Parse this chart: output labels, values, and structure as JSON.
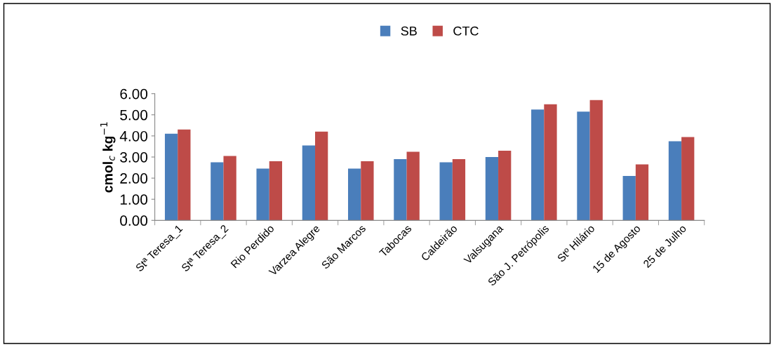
{
  "chart_data": {
    "type": "bar",
    "ylabel": "cmol$_{c}$ kg$^{−1}$",
    "categories": [
      "Stª Teresa_1",
      "Stª Teresa_2",
      "Rio Perdido",
      "Varzea Alegre",
      "São Marcos",
      "Tabocas",
      "Caldeirão",
      "Valsugana",
      "São J. Petrópolis",
      "Stº Hilário",
      "15 de Agosto",
      "25 de Julho"
    ],
    "series": [
      {
        "name": "SB",
        "color": "#4a7ebb",
        "values": [
          4.1,
          2.75,
          2.45,
          3.55,
          2.45,
          2.9,
          2.75,
          3.0,
          5.25,
          5.15,
          2.1,
          3.75
        ]
      },
      {
        "name": "CTC",
        "color": "#be4b48",
        "values": [
          4.3,
          3.05,
          2.8,
          4.2,
          2.8,
          3.25,
          2.9,
          3.3,
          5.5,
          5.7,
          2.65,
          3.95
        ]
      }
    ],
    "ylim": [
      0,
      6
    ],
    "yticks": [
      {
        "value": 0,
        "label": "0.00"
      },
      {
        "value": 1,
        "label": "1.00"
      },
      {
        "value": 2,
        "label": "2.00"
      },
      {
        "value": 3,
        "label": "3.00"
      },
      {
        "value": 4,
        "label": "4.00"
      },
      {
        "value": 5,
        "label": "5.00"
      },
      {
        "value": 6,
        "label": "6.00"
      }
    ],
    "legend": "top",
    "grid": false
  }
}
